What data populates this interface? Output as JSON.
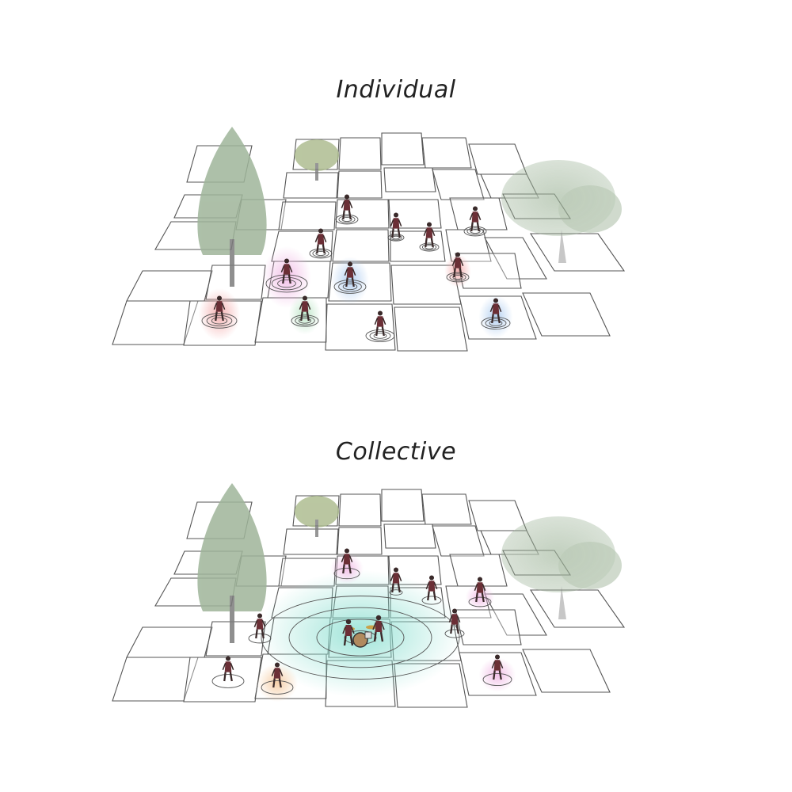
{
  "diagram": {
    "panels": [
      {
        "title": "Individual"
      },
      {
        "title": "Collective"
      }
    ]
  },
  "colors": {
    "tile_stroke": "#555555",
    "ring_stroke": "#555555",
    "glow_red": "#f3a5a5",
    "glow_blue": "#a9c9ef",
    "glow_green": "#b5e3c0",
    "glow_pink": "#f0b6e4",
    "glow_orange": "#f4c79a",
    "glow_teal": "#8fe0d2",
    "tree_foliage": "#9fb59a",
    "tree_trunk": "#7c7c7c",
    "person": "#3a2a2a"
  },
  "icons": {
    "conifer_tree": "tall-conifer-tree-icon",
    "small_tree": "small-tree-icon",
    "broad_tree": "broad-canopy-tree-icon",
    "person": "person-silhouette-icon",
    "drum_kit": "drum-kit-icon"
  }
}
